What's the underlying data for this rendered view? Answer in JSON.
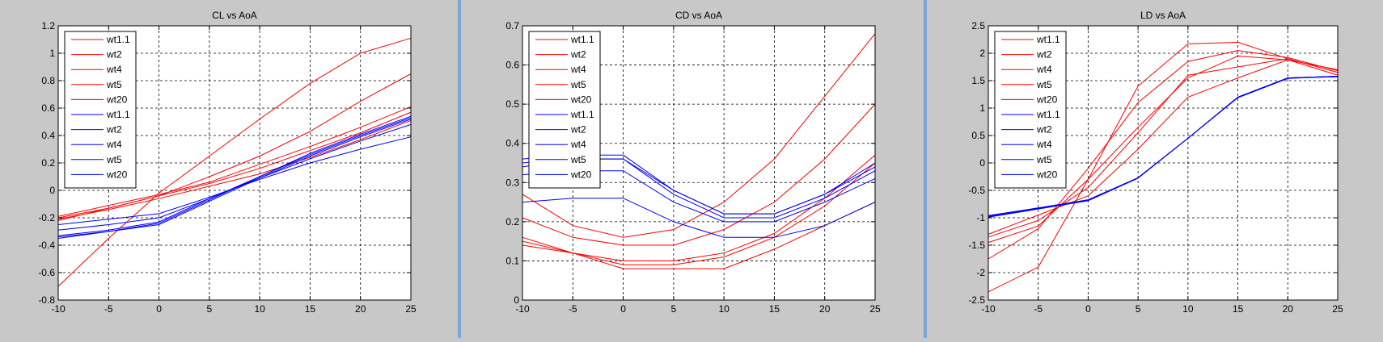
{
  "colors": {
    "figure_bg": "#c8c8c8",
    "axes_bg": "#ffffff",
    "separator": "#7aa7d4",
    "red": "#ff0000",
    "blue": "#0000ff",
    "text": "#000000"
  },
  "legend_entries": [
    "wt1.1",
    "wt2",
    "wt4",
    "wt5",
    "wt20",
    "wt1.1",
    "wt2",
    "wt4",
    "wt5",
    "wt20"
  ],
  "legend_colors": [
    "#ff0000",
    "#ff0000",
    "#ff0000",
    "#ff0000",
    "#ff0000",
    "#0000ff",
    "#0000ff",
    "#0000ff",
    "#0000ff",
    "#0000ff"
  ],
  "chart_data": [
    {
      "type": "line",
      "title": "CL vs AoA",
      "xlabel": "",
      "ylabel": "",
      "xlim": [
        -10,
        25
      ],
      "ylim": [
        -0.8,
        1.2
      ],
      "xticks": [
        -10,
        -5,
        0,
        5,
        10,
        15,
        20,
        25
      ],
      "yticks": [
        -0.8,
        -0.6,
        -0.4,
        -0.2,
        0,
        0.2,
        0.4,
        0.6,
        0.8,
        1,
        1.2
      ],
      "ytick_labels": [
        "-0.8",
        "-0.6",
        "-0.4",
        "-0.2",
        "0",
        "0.2",
        "0.4",
        "0.6",
        "0.8",
        "1",
        "1.2"
      ],
      "grid": true,
      "legend_position": "top-left",
      "x": [
        -10,
        -5,
        0,
        5,
        10,
        15,
        20,
        25
      ],
      "series": [
        {
          "name": "wt1.1",
          "color": "#ff0000",
          "values": [
            -0.7,
            -0.35,
            -0.02,
            0.25,
            0.52,
            0.78,
            1.0,
            1.11
          ]
        },
        {
          "name": "wt2",
          "color": "#ff0000",
          "values": [
            -0.2,
            -0.13,
            -0.04,
            0.1,
            0.25,
            0.43,
            0.65,
            0.85
          ]
        },
        {
          "name": "wt4",
          "color": "#ff0000",
          "values": [
            -0.19,
            -0.11,
            -0.03,
            0.06,
            0.19,
            0.32,
            0.46,
            0.61
          ]
        },
        {
          "name": "wt5",
          "color": "#ff0000",
          "values": [
            -0.22,
            -0.13,
            -0.04,
            0.05,
            0.16,
            0.29,
            0.42,
            0.57
          ]
        },
        {
          "name": "wt20",
          "color": "#ff0000",
          "values": [
            -0.21,
            -0.14,
            -0.06,
            0.03,
            0.12,
            0.24,
            0.37,
            0.51
          ]
        },
        {
          "name": "wt1.1",
          "color": "#0000ff",
          "values": [
            -0.34,
            -0.3,
            -0.24,
            -0.07,
            0.1,
            0.27,
            0.41,
            0.54
          ]
        },
        {
          "name": "wt2",
          "color": "#0000ff",
          "values": [
            -0.35,
            -0.3,
            -0.25,
            -0.08,
            0.09,
            0.25,
            0.39,
            0.52
          ]
        },
        {
          "name": "wt4",
          "color": "#0000ff",
          "values": [
            -0.33,
            -0.29,
            -0.23,
            -0.06,
            0.1,
            0.26,
            0.4,
            0.53
          ]
        },
        {
          "name": "wt5",
          "color": "#0000ff",
          "values": [
            -0.29,
            -0.25,
            -0.2,
            -0.06,
            0.09,
            0.23,
            0.36,
            0.48
          ]
        },
        {
          "name": "wt20",
          "color": "#0000ff",
          "values": [
            -0.25,
            -0.21,
            -0.17,
            -0.05,
            0.08,
            0.2,
            0.3,
            0.39
          ]
        }
      ]
    },
    {
      "type": "line",
      "title": "CD vs AoA",
      "xlabel": "",
      "ylabel": "",
      "xlim": [
        -10,
        25
      ],
      "ylim": [
        0,
        0.7
      ],
      "xticks": [
        -10,
        -5,
        0,
        5,
        10,
        15,
        20,
        25
      ],
      "yticks": [
        0,
        0.1,
        0.2,
        0.3,
        0.4,
        0.5,
        0.6,
        0.7
      ],
      "ytick_labels": [
        "0",
        "0.1",
        "0.2",
        "0.3",
        "0.4",
        "0.5",
        "0.6",
        "0.7"
      ],
      "grid": true,
      "legend_position": "top-left",
      "x": [
        -10,
        -5,
        0,
        5,
        10,
        15,
        20,
        25
      ],
      "series": [
        {
          "name": "wt1.1",
          "color": "#ff0000",
          "values": [
            0.27,
            0.19,
            0.16,
            0.18,
            0.25,
            0.36,
            0.52,
            0.68
          ]
        },
        {
          "name": "wt2",
          "color": "#ff0000",
          "values": [
            0.21,
            0.16,
            0.14,
            0.14,
            0.18,
            0.25,
            0.36,
            0.5
          ]
        },
        {
          "name": "wt4",
          "color": "#ff0000",
          "values": [
            0.16,
            0.12,
            0.1,
            0.1,
            0.12,
            0.17,
            0.26,
            0.37
          ]
        },
        {
          "name": "wt5",
          "color": "#ff0000",
          "values": [
            0.15,
            0.12,
            0.09,
            0.09,
            0.11,
            0.16,
            0.24,
            0.35
          ]
        },
        {
          "name": "wt20",
          "color": "#ff0000",
          "values": [
            0.14,
            0.12,
            0.08,
            0.08,
            0.08,
            0.13,
            0.19,
            0.25
          ]
        },
        {
          "name": "wt1.1",
          "color": "#0000ff",
          "values": [
            0.35,
            0.36,
            0.36,
            0.28,
            0.22,
            0.22,
            0.27,
            0.34
          ]
        },
        {
          "name": "wt2",
          "color": "#0000ff",
          "values": [
            0.36,
            0.37,
            0.37,
            0.28,
            0.22,
            0.22,
            0.27,
            0.35
          ]
        },
        {
          "name": "wt4",
          "color": "#0000ff",
          "values": [
            0.34,
            0.36,
            0.36,
            0.27,
            0.21,
            0.21,
            0.26,
            0.33
          ]
        },
        {
          "name": "wt5",
          "color": "#0000ff",
          "values": [
            0.32,
            0.33,
            0.33,
            0.25,
            0.2,
            0.2,
            0.25,
            0.31
          ]
        },
        {
          "name": "wt20",
          "color": "#0000ff",
          "values": [
            0.25,
            0.26,
            0.26,
            0.2,
            0.16,
            0.16,
            0.19,
            0.25
          ]
        }
      ]
    },
    {
      "type": "line",
      "title": "LD vs AoA",
      "xlabel": "",
      "ylabel": "",
      "xlim": [
        -10,
        25
      ],
      "ylim": [
        -2.5,
        2.5
      ],
      "xticks": [
        -10,
        -5,
        0,
        5,
        10,
        15,
        20,
        25
      ],
      "yticks": [
        -2.5,
        -2,
        -1.5,
        -1,
        -0.5,
        0,
        0.5,
        1,
        1.5,
        2,
        2.5
      ],
      "ytick_labels": [
        "-2.5",
        "-2",
        "-1.5",
        "-1",
        "-0.5",
        "0",
        "0.5",
        "1",
        "1.5",
        "2",
        "2.5"
      ],
      "grid": true,
      "legend_position": "top-left",
      "x": [
        -10,
        -5,
        0,
        5,
        10,
        15,
        20,
        25
      ],
      "series": [
        {
          "name": "wt1.1",
          "color": "#ff0000",
          "values": [
            -2.35,
            -1.9,
            -0.3,
            1.4,
            2.17,
            2.2,
            1.9,
            1.65
          ]
        },
        {
          "name": "wt2",
          "color": "#ff0000",
          "values": [
            -1.75,
            -1.2,
            -0.1,
            1.1,
            1.85,
            2.05,
            1.92,
            1.68
          ]
        },
        {
          "name": "wt4",
          "color": "#ff0000",
          "values": [
            -1.45,
            -1.15,
            -0.3,
            0.65,
            1.55,
            1.95,
            1.88,
            1.7
          ]
        },
        {
          "name": "wt5",
          "color": "#ff0000",
          "values": [
            -1.35,
            -1.05,
            -0.45,
            0.55,
            1.6,
            1.75,
            1.9,
            1.65
          ]
        },
        {
          "name": "wt20",
          "color": "#ff0000",
          "values": [
            -1.3,
            -0.95,
            -0.6,
            0.25,
            1.2,
            1.55,
            1.88,
            1.6
          ]
        },
        {
          "name": "wt1.1",
          "color": "#0000ff",
          "values": [
            -0.97,
            -0.82,
            -0.68,
            -0.27,
            0.45,
            1.2,
            1.55,
            1.58
          ]
        },
        {
          "name": "wt2",
          "color": "#0000ff",
          "values": [
            -0.98,
            -0.83,
            -0.68,
            -0.27,
            0.45,
            1.2,
            1.55,
            1.58
          ]
        },
        {
          "name": "wt4",
          "color": "#0000ff",
          "values": [
            -0.96,
            -0.82,
            -0.67,
            -0.27,
            0.45,
            1.2,
            1.55,
            1.58
          ]
        },
        {
          "name": "wt5",
          "color": "#0000ff",
          "values": [
            -0.99,
            -0.84,
            -0.69,
            -0.28,
            0.45,
            1.2,
            1.55,
            1.57
          ]
        },
        {
          "name": "wt20",
          "color": "#0000ff",
          "values": [
            -0.97,
            -0.83,
            -0.68,
            -0.27,
            0.45,
            1.19,
            1.54,
            1.58
          ]
        }
      ]
    }
  ]
}
